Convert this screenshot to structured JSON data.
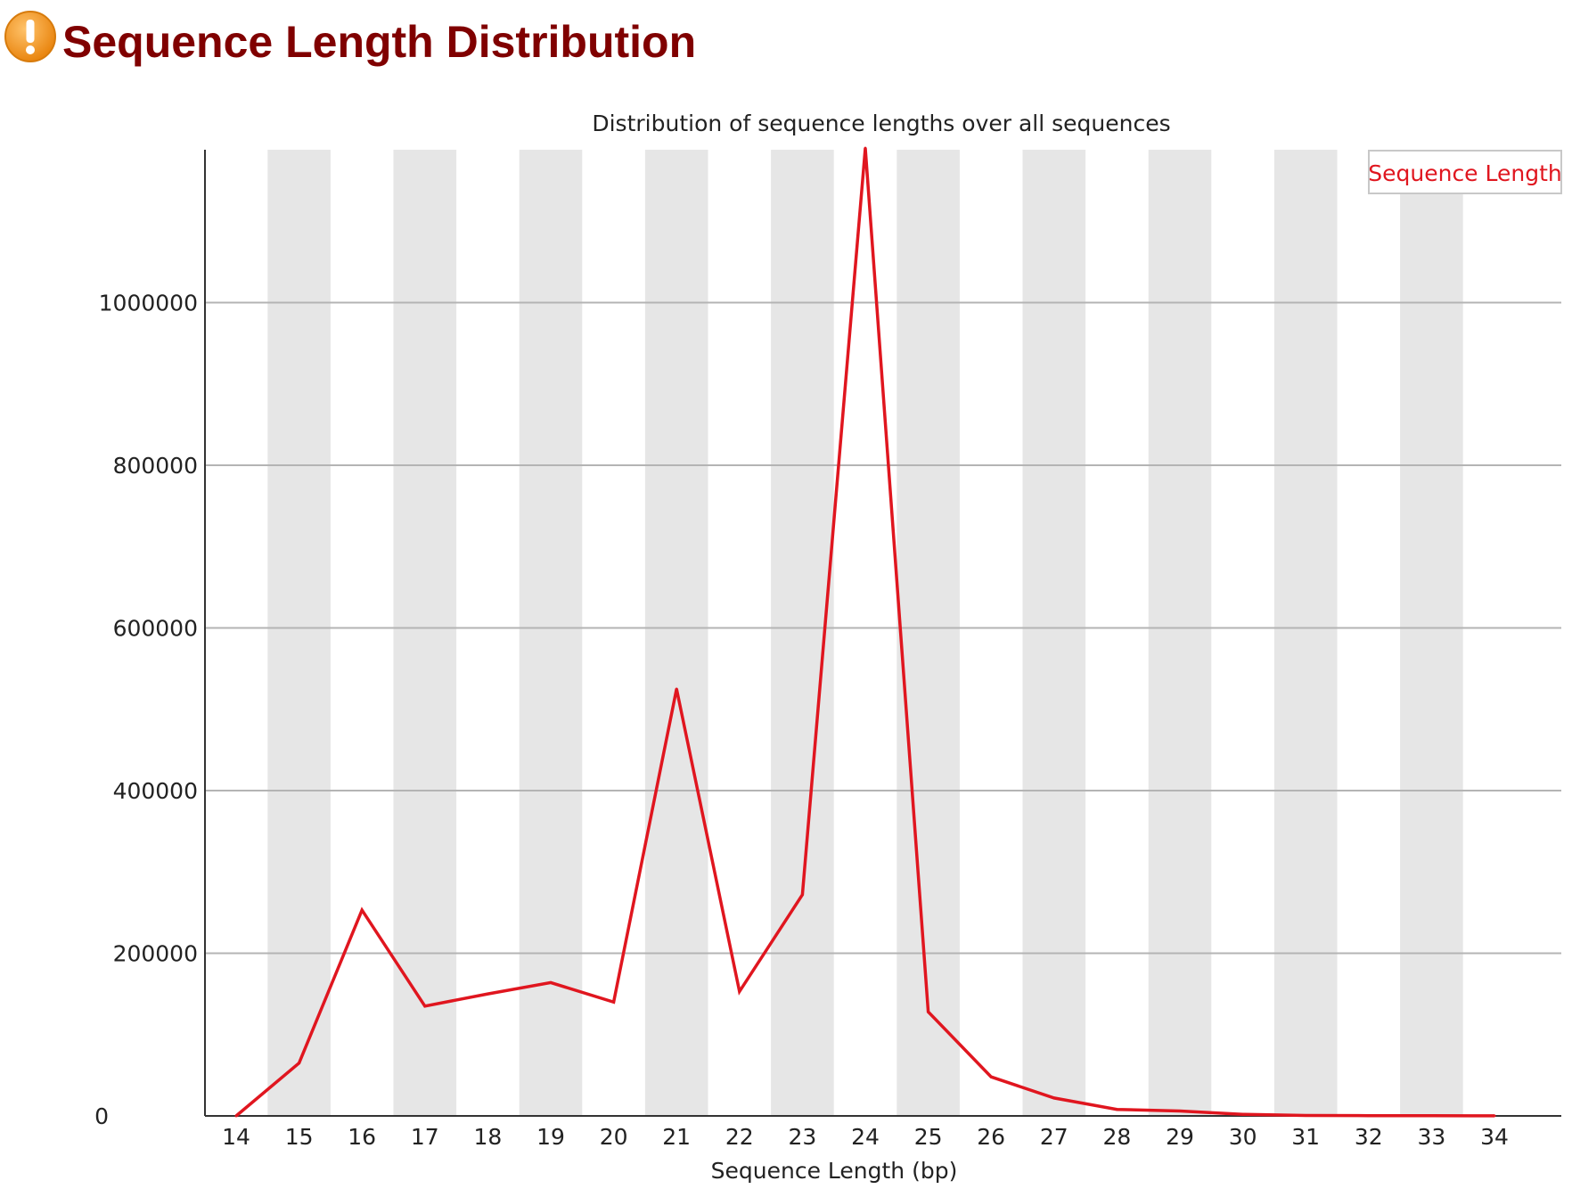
{
  "page": {
    "title": "Sequence Length Distribution",
    "status_icon": "warning-icon"
  },
  "colors": {
    "title": "#800000",
    "series": "#e0161f",
    "band": "#e6e6e6",
    "grid": "#b4b4b4",
    "icon_outer": "#f39c1e",
    "icon_inner": "#ffffff"
  },
  "chart_data": {
    "type": "line",
    "title": "Distribution of sequence lengths over all sequences",
    "xlabel": "Sequence Length (bp)",
    "ylabel": "",
    "x": [
      "14",
      "15",
      "16",
      "17",
      "18",
      "19",
      "20",
      "21",
      "22",
      "23",
      "24",
      "25",
      "26",
      "27",
      "28",
      "29",
      "30",
      "31",
      "32",
      "33",
      "34"
    ],
    "series": [
      {
        "name": "Sequence Length",
        "values": [
          0,
          65000,
          253000,
          135000,
          150000,
          164000,
          140000,
          525000,
          153000,
          272000,
          1190000,
          128000,
          48000,
          22000,
          8000,
          6000,
          2000,
          500,
          300,
          200,
          100
        ]
      }
    ],
    "yticks": [
      0,
      200000,
      400000,
      600000,
      800000,
      1000000
    ],
    "ylim": [
      0,
      1188000
    ],
    "grid": true,
    "alternating_bands": true,
    "legend": "top-right"
  }
}
